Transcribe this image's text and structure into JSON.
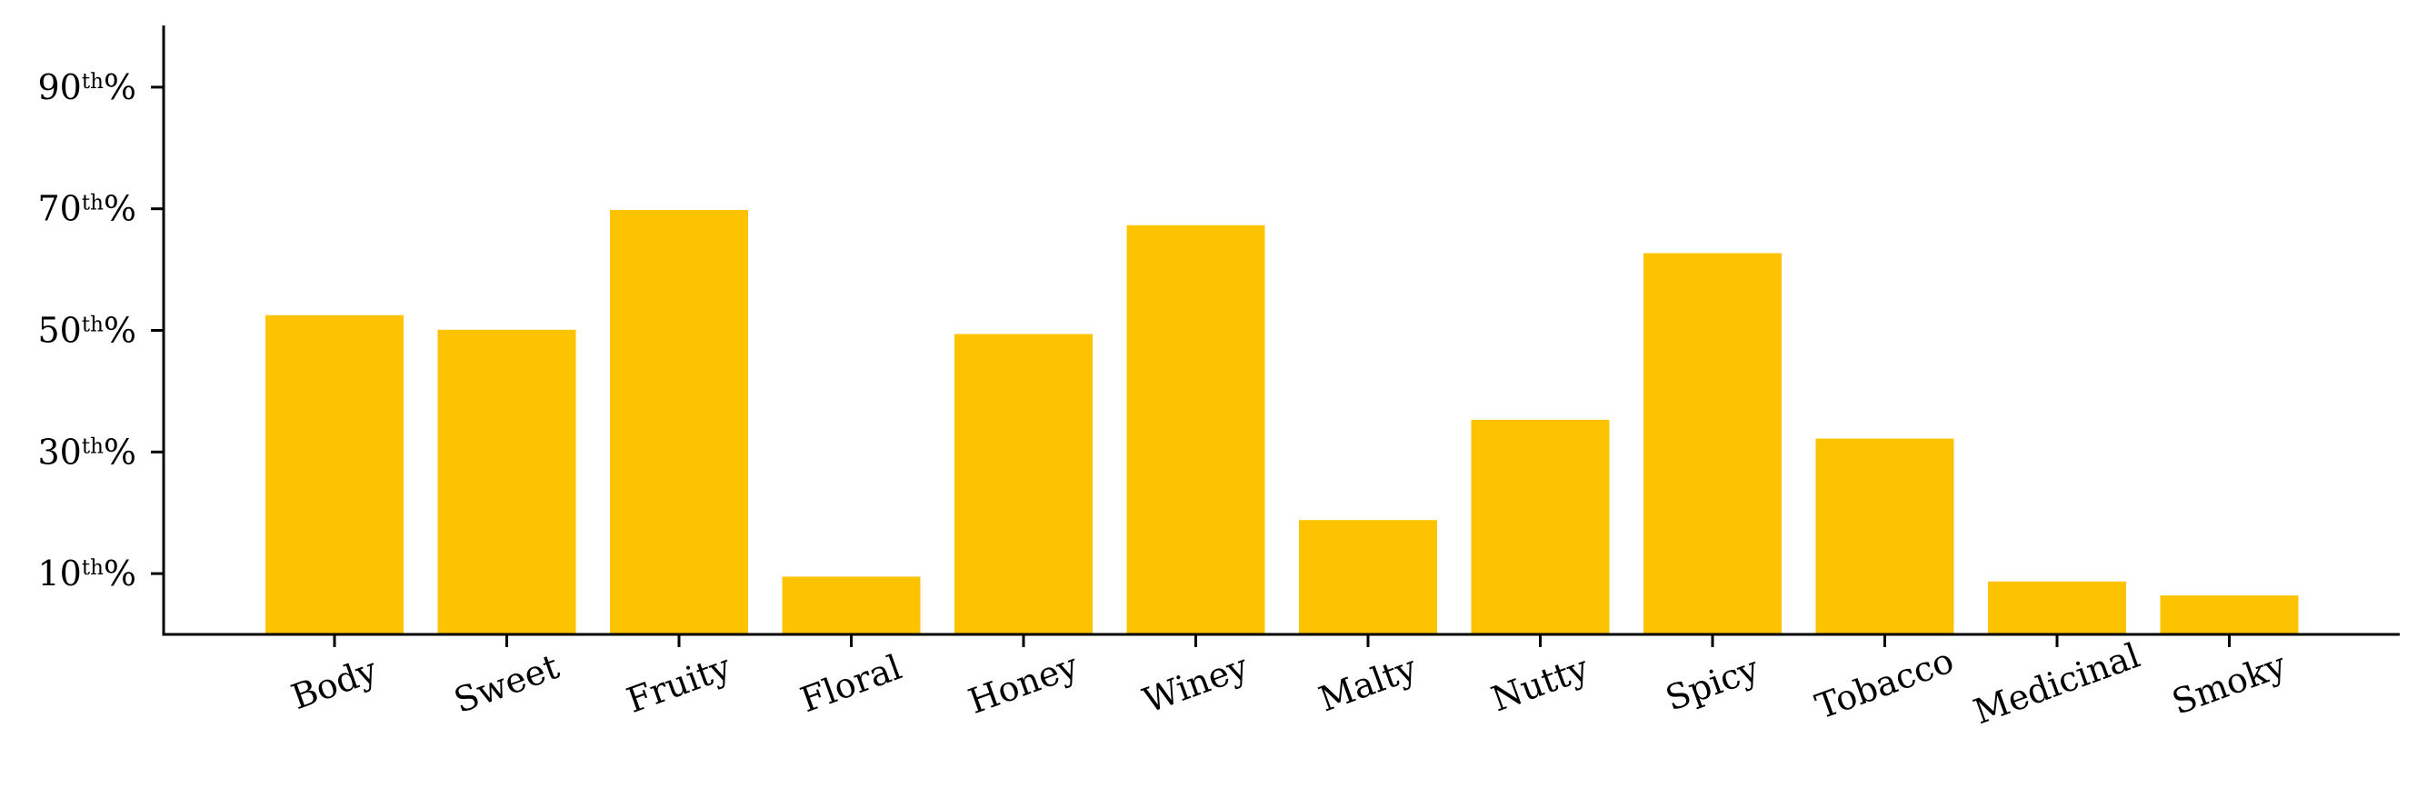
{
  "chart_data": {
    "type": "bar",
    "title": "",
    "xlabel": "",
    "ylabel": "",
    "bar_color": "#FDC300",
    "categories": [
      "Body",
      "Sweet",
      "Fruity",
      "Floral",
      "Honey",
      "Winey",
      "Malty",
      "Nutty",
      "Spicy",
      "Tobacco",
      "Medicinal",
      "Smoky"
    ],
    "values": [
      52.5,
      50.1,
      69.8,
      9.5,
      49.4,
      67.3,
      18.8,
      35.3,
      62.7,
      32.2,
      8.7,
      6.4
    ],
    "ylim": [
      0,
      100
    ],
    "y_ticks": [
      {
        "value": 10,
        "num": "10",
        "sup": "th",
        "suffix": "%"
      },
      {
        "value": 30,
        "num": "30",
        "sup": "th",
        "suffix": "%"
      },
      {
        "value": 50,
        "num": "50",
        "sup": "th",
        "suffix": "%"
      },
      {
        "value": 70,
        "num": "70",
        "sup": "th",
        "suffix": "%"
      },
      {
        "value": 90,
        "num": "90",
        "sup": "th",
        "suffix": "%"
      }
    ],
    "x_tick_rotation": 20,
    "grid": false,
    "legend": "none"
  }
}
